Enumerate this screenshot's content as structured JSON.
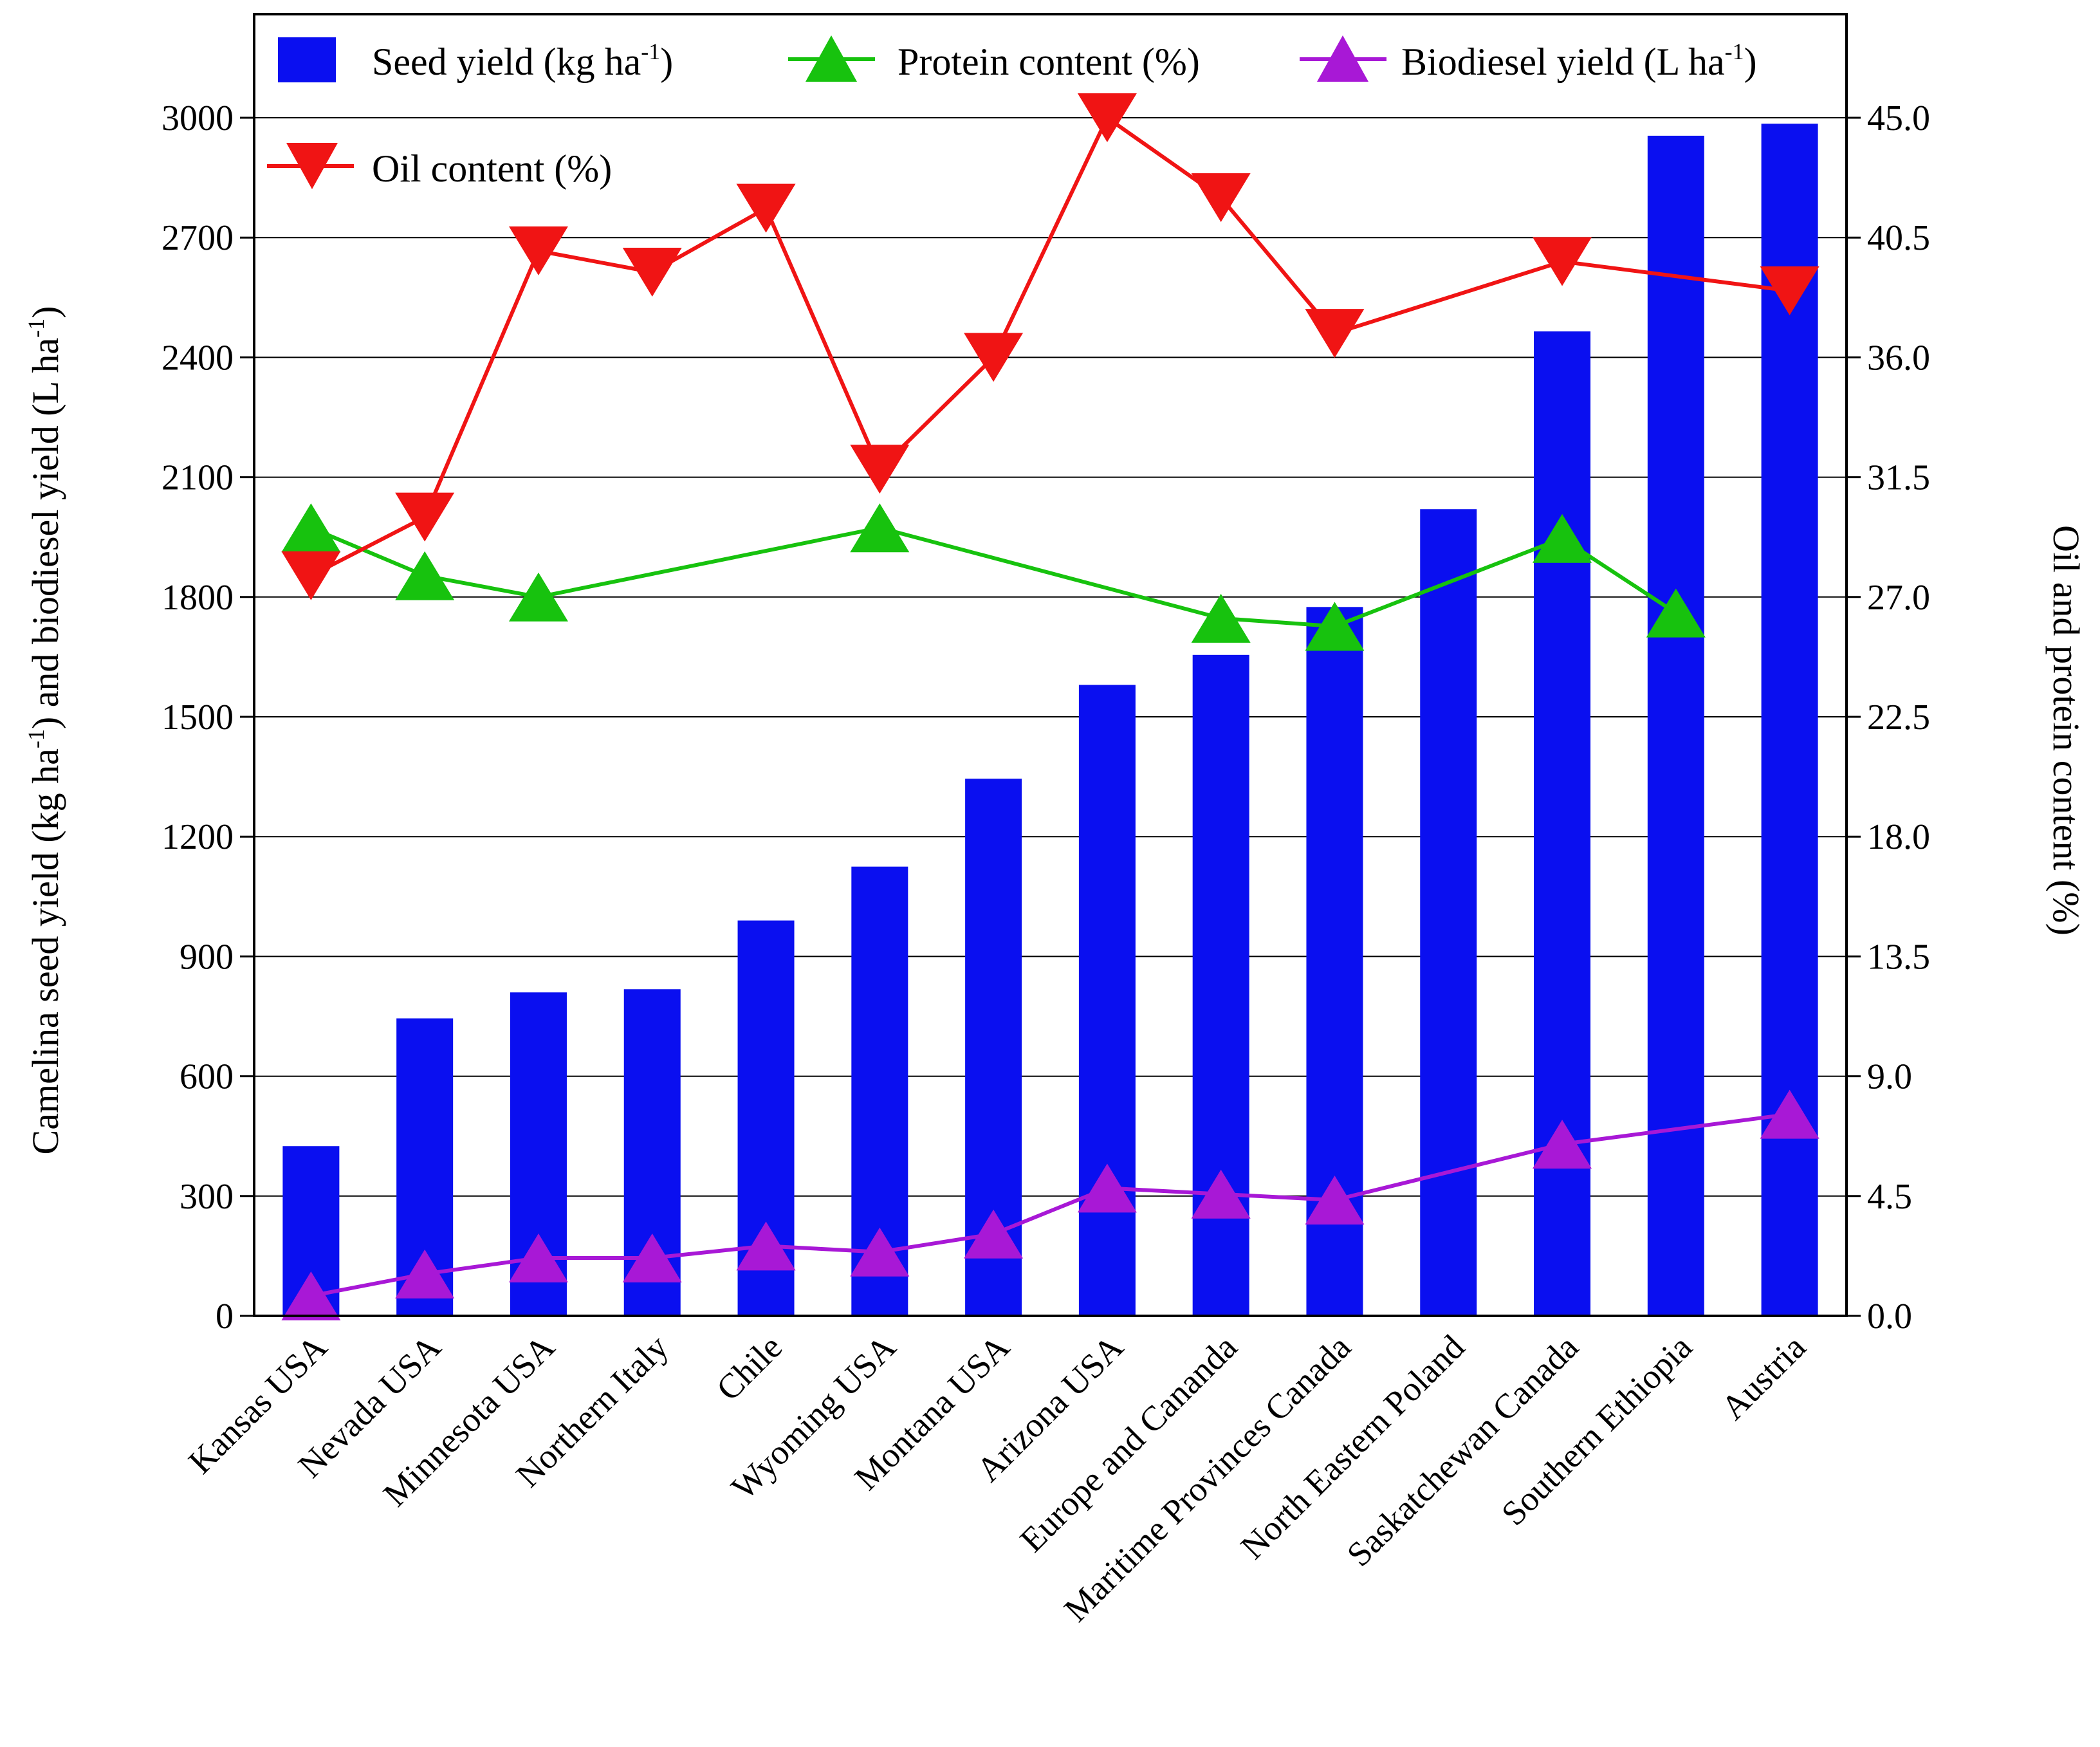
{
  "chart_data": {
    "type": "bar",
    "categories": [
      "Kansas USA",
      "Nevada USA",
      "Minnesota USA",
      "Northern Italy",
      "Chile",
      "Wyoming USA",
      "Montana USA",
      "Arizona USA",
      "Europe and Cananda",
      "Maritime Provinces Canada",
      "North Eastern Poland",
      "Saskatchewan Canada",
      "Southern Ethiopia",
      "Austria"
    ],
    "series": [
      {
        "name": "Seed yield (kg ha-1)",
        "kind": "bar",
        "axis": "left",
        "color": "#0a0ff0",
        "values": [
          425,
          745,
          810,
          818,
          990,
          1125,
          1345,
          1580,
          1655,
          1775,
          2020,
          2465,
          2955,
          2985
        ]
      },
      {
        "name": "Protein content (%)",
        "kind": "line",
        "marker": "triangle-up",
        "axis": "right",
        "color": "#17c20e",
        "values": [
          29.6,
          27.8,
          27.0,
          null,
          null,
          29.6,
          null,
          null,
          26.2,
          25.9,
          null,
          29.2,
          26.4,
          null
        ]
      },
      {
        "name": "Biodiesel yield (L ha-1)",
        "kind": "line",
        "marker": "triangle-up",
        "axis": "left",
        "color": "#a818d6",
        "values": [
          50,
          105,
          145,
          145,
          175,
          160,
          205,
          320,
          305,
          290,
          null,
          430,
          null,
          505
        ]
      },
      {
        "name": "Oil content (%)",
        "kind": "line",
        "marker": "triangle-down",
        "axis": "right",
        "color": "#f01414",
        "values": [
          27.8,
          30.0,
          40.0,
          39.2,
          41.6,
          31.8,
          36.0,
          45.0,
          42.0,
          36.9,
          null,
          39.6,
          null,
          38.5
        ]
      }
    ],
    "ylabel": "Camelina seed yield (kg ha-1) and biodiesel yield (L ha-1)",
    "y2label": "Oil and protein content (%)",
    "ylim": [
      0,
      3000
    ],
    "y2lim": [
      0,
      45
    ],
    "yticks": [
      "0",
      "300",
      "600",
      "900",
      "1200",
      "1500",
      "1800",
      "2100",
      "2400",
      "2700",
      "3000"
    ],
    "y2ticks": [
      "0.0",
      "4.5",
      "9.0",
      "13.5",
      "18.0",
      "22.5",
      "27.0",
      "31.5",
      "36.0",
      "40.5",
      "45.0"
    ],
    "grid": true,
    "legend_position": "top"
  },
  "legend": {
    "seed_main": "Seed yield (kg ha",
    "seed_sup": "-1",
    "seed_tail": ")",
    "protein": "Protein content (%)",
    "bio_main": "Biodiesel yield (L ha",
    "bio_sup": "-1",
    "bio_tail": ")",
    "oil": "Oil content (%)"
  },
  "axis_titles": {
    "left_a": "Camelina seed yield (kg ha",
    "left_sup1": "-1",
    "left_b": ") and biodiesel yield (L ha",
    "left_sup2": "-1",
    "left_c": ")",
    "right": "Oil and protein content (%)"
  }
}
